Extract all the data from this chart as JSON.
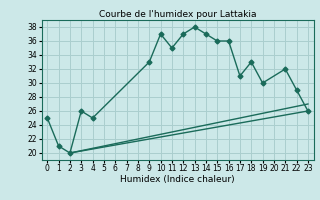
{
  "title": "Courbe de l'humidex pour Lattakia",
  "xlabel": "Humidex (Indice chaleur)",
  "bg_color": "#cce8e8",
  "grid_color": "#aacece",
  "line_color": "#1a6b5a",
  "line1_pts": [
    [
      0,
      25
    ],
    [
      1,
      21
    ],
    [
      2,
      20
    ],
    [
      3,
      26
    ],
    [
      4,
      25
    ],
    [
      9,
      33
    ],
    [
      10,
      37
    ],
    [
      11,
      35
    ],
    [
      12,
      37
    ],
    [
      13,
      38
    ],
    [
      14,
      37
    ],
    [
      15,
      36
    ],
    [
      16,
      36
    ],
    [
      17,
      31
    ],
    [
      18,
      33
    ],
    [
      19,
      30
    ],
    [
      21,
      32
    ],
    [
      22,
      29
    ],
    [
      23,
      26
    ]
  ],
  "line2_pts": [
    [
      2,
      20
    ],
    [
      23,
      26
    ]
  ],
  "line3_pts": [
    [
      2,
      20
    ],
    [
      23,
      27
    ]
  ],
  "ylim": [
    19,
    39
  ],
  "xlim": [
    -0.5,
    23.5
  ],
  "yticks": [
    20,
    22,
    24,
    26,
    28,
    30,
    32,
    34,
    36,
    38
  ],
  "xticks": [
    0,
    1,
    2,
    3,
    4,
    5,
    6,
    7,
    8,
    9,
    10,
    11,
    12,
    13,
    14,
    15,
    16,
    17,
    18,
    19,
    20,
    21,
    22,
    23
  ]
}
